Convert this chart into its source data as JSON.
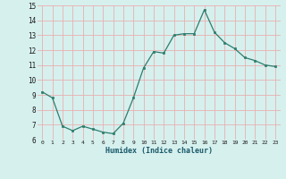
{
  "x": [
    0,
    1,
    2,
    3,
    4,
    5,
    6,
    7,
    8,
    9,
    10,
    11,
    12,
    13,
    14,
    15,
    16,
    17,
    18,
    19,
    20,
    21,
    22,
    23
  ],
  "y": [
    9.2,
    8.8,
    6.9,
    6.6,
    6.9,
    6.7,
    6.5,
    6.4,
    7.1,
    8.8,
    10.8,
    11.9,
    11.8,
    13.0,
    13.1,
    13.1,
    14.7,
    13.2,
    12.5,
    12.1,
    11.5,
    11.3,
    11.0,
    10.9
  ],
  "xlabel": "Humidex (Indice chaleur)",
  "ylim": [
    6,
    15
  ],
  "xlim": [
    -0.5,
    23.5
  ],
  "yticks": [
    6,
    7,
    8,
    9,
    10,
    11,
    12,
    13,
    14,
    15
  ],
  "xticks": [
    0,
    1,
    2,
    3,
    4,
    5,
    6,
    7,
    8,
    9,
    10,
    11,
    12,
    13,
    14,
    15,
    16,
    17,
    18,
    19,
    20,
    21,
    22,
    23
  ],
  "line_color": "#2d7d6e",
  "marker_color": "#2d7d6e",
  "bg_color": "#d6f0ee",
  "grid_color": "#e8b0b0",
  "xlabel_color": "#1a5a6a"
}
